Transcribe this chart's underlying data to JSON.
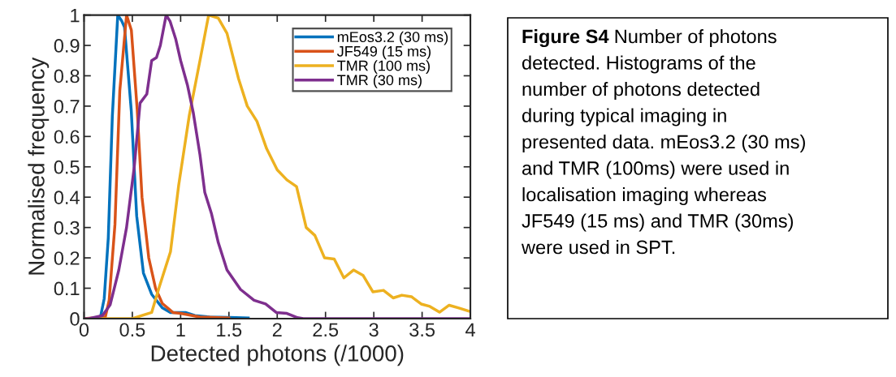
{
  "chart_data": {
    "type": "line",
    "xlabel": "Detected photons (/1000)",
    "ylabel": "Normalised frequency",
    "xlim": [
      0,
      4
    ],
    "xticks": [
      0,
      0.5,
      1,
      1.5,
      2,
      2.5,
      3,
      3.5,
      4
    ],
    "ylim": [
      0,
      1
    ],
    "yticks": [
      0,
      0.1,
      0.2,
      0.3,
      0.4,
      0.5,
      0.6,
      0.7,
      0.8,
      0.9,
      1
    ],
    "grid": false,
    "legend": "top right",
    "marker": "none",
    "line_style": "solid",
    "series": [
      {
        "name": "mEos3.2 (30 ms)",
        "color": "#0072bd",
        "x": [
          0,
          0.167,
          0.209,
          0.251,
          0.293,
          0.349,
          0.391,
          0.419,
          0.489,
          0.545,
          0.615,
          0.7,
          0.812,
          0.895,
          1.05,
          1.148,
          1.3,
          1.5,
          1.7
        ],
        "values": [
          0,
          0,
          0.066,
          0.266,
          0.667,
          1.0,
          0.98,
          0.96,
          0.685,
          0.338,
          0.15,
          0.08,
          0.035,
          0.02,
          0.02,
          0.01,
          0.005,
          0.004,
          0.002
        ]
      },
      {
        "name": "JF549 (15 ms)",
        "color": "#d95319",
        "x": [
          0,
          0.22,
          0.26,
          0.32,
          0.37,
          0.44,
          0.49,
          0.55,
          0.6,
          0.67,
          0.74,
          0.81,
          0.92,
          1.0,
          1.2,
          1.5
        ],
        "values": [
          0,
          0.005,
          0.06,
          0.31,
          0.75,
          1.0,
          0.95,
          0.69,
          0.4,
          0.2,
          0.1,
          0.05,
          0.02,
          0.017,
          0.005,
          0.002
        ]
      },
      {
        "name": "TMR (100 ms)",
        "color": "#edb120",
        "x": [
          0,
          0.5,
          0.7,
          0.78,
          0.895,
          0.98,
          1.09,
          1.2,
          1.29,
          1.39,
          1.48,
          1.6,
          1.69,
          1.79,
          1.89,
          2.0,
          2.1,
          2.2,
          2.3,
          2.39,
          2.49,
          2.59,
          2.69,
          2.79,
          2.89,
          2.99,
          3.1,
          3.2,
          3.29,
          3.39,
          3.49,
          3.58,
          3.68,
          3.78,
          3.88,
          3.98
        ],
        "values": [
          0,
          0,
          0.02,
          0.105,
          0.22,
          0.44,
          0.67,
          0.85,
          1.0,
          0.99,
          0.94,
          0.79,
          0.7,
          0.65,
          0.56,
          0.49,
          0.457,
          0.435,
          0.3,
          0.274,
          0.2,
          0.196,
          0.134,
          0.16,
          0.142,
          0.088,
          0.093,
          0.068,
          0.077,
          0.072,
          0.048,
          0.04,
          0.021,
          0.044,
          0.035,
          0.025
        ]
      },
      {
        "name": "TMR (30 ms)",
        "color": "#7e2f8e",
        "x": [
          0,
          0.05,
          0.19,
          0.27,
          0.36,
          0.44,
          0.52,
          0.58,
          0.65,
          0.7,
          0.75,
          0.79,
          0.85,
          0.89,
          0.95,
          1.0,
          1.07,
          1.13,
          1.2,
          1.25,
          1.32,
          1.39,
          1.48,
          1.62,
          1.76,
          1.88,
          1.99,
          2.1,
          2.21,
          2.27,
          2.5,
          3,
          3.5,
          4
        ],
        "values": [
          0,
          0,
          0.01,
          0.045,
          0.16,
          0.3,
          0.5,
          0.71,
          0.74,
          0.85,
          0.86,
          0.9,
          1.0,
          0.98,
          0.92,
          0.85,
          0.77,
          0.68,
          0.54,
          0.416,
          0.345,
          0.25,
          0.16,
          0.096,
          0.06,
          0.048,
          0.02,
          0.017,
          0.003,
          0,
          0,
          0,
          0,
          0
        ]
      }
    ],
    "annotations": [
      "Figure S4",
      "Number of photons\ndetected. Histograms of the\nnumber of photons detected\nduring typical imaging in\npresented data. mEos3.2 (30 ms)\nand TMR (100ms) were used in\nlocalisation imaging whereas\nJF549 (15 ms) and TMR (30ms)\nwere used in SPT."
    ]
  }
}
